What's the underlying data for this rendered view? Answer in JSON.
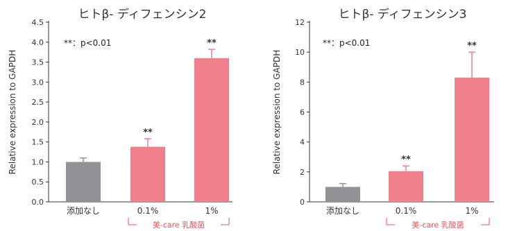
{
  "chart_data": [
    {
      "type": "bar",
      "title": "ヒトβ- ディフェンシン2",
      "ylabel": "Relative expression to GAPDH",
      "ylim": [
        0,
        4.5
      ],
      "yticks": [
        "0.0",
        "0.5",
        "1.0",
        "1.5",
        "2.0",
        "2.5",
        "3.0",
        "3.5",
        "4.0",
        "4.5"
      ],
      "categories": [
        "添加なし",
        "0.1%",
        "1%"
      ],
      "values": [
        1.0,
        1.38,
        3.6
      ],
      "errors": [
        0.1,
        0.2,
        0.22
      ],
      "significance": [
        "",
        "**",
        "**"
      ],
      "note": "**：p<0.01",
      "group_label": "美-care 乳酸菌",
      "bar_colors": [
        "#929296",
        "#ef7f8c",
        "#ef7f8c"
      ]
    },
    {
      "type": "bar",
      "title": "ヒトβ- ディフェンシン3",
      "ylabel": "Relative expression to GAPDH",
      "ylim": [
        0,
        12
      ],
      "yticks": [
        "0",
        "2",
        "4",
        "6",
        "8",
        "10",
        "12"
      ],
      "categories": [
        "添加なし",
        "0.1%",
        "1%"
      ],
      "values": [
        1.0,
        2.05,
        8.3
      ],
      "errors": [
        0.22,
        0.35,
        1.7
      ],
      "significance": [
        "",
        "**",
        "**"
      ],
      "note": "**：p<0.01",
      "group_label": "美-care 乳酸菌",
      "bar_colors": [
        "#929296",
        "#ef7f8c",
        "#ef7f8c"
      ]
    }
  ]
}
